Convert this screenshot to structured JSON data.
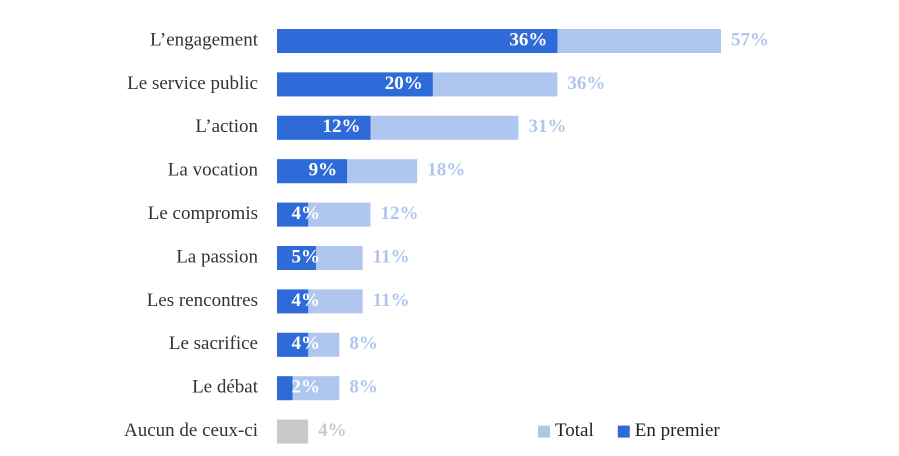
{
  "chart_data": {
    "type": "overlap-bar",
    "categories": [
      "L’engagement",
      "Le service public",
      "L’action",
      "La vocation",
      "Le compromis",
      "La passion",
      "Les rencontres",
      "Le sacrifice",
      "Le débat",
      "Aucun de ceux-ci"
    ],
    "series": [
      {
        "name": "Total",
        "color": "#afc6ef",
        "colors": [
          "#afc6ef",
          "#afc6ef",
          "#afc6ef",
          "#afc6ef",
          "#afc6ef",
          "#afc6ef",
          "#afc6ef",
          "#afc6ef",
          "#afc6ef",
          "#c9c9c9"
        ],
        "values": [
          57,
          36,
          31,
          18,
          12,
          11,
          11,
          8,
          8,
          4
        ],
        "value_labels": [
          "57%",
          "36%",
          "31%",
          "18%",
          "12%",
          "11%",
          "11%",
          "8%",
          "8%",
          "4%"
        ]
      },
      {
        "name": "En premier",
        "color": "#2f6bd8",
        "values": [
          36,
          20,
          12,
          9,
          4,
          5,
          4,
          4,
          2,
          null
        ],
        "value_labels": [
          "36%",
          "20%",
          "12%",
          "9%",
          "4%",
          "5%",
          "4%",
          "4%",
          "2%",
          null
        ]
      }
    ],
    "legend": "lower right"
  }
}
